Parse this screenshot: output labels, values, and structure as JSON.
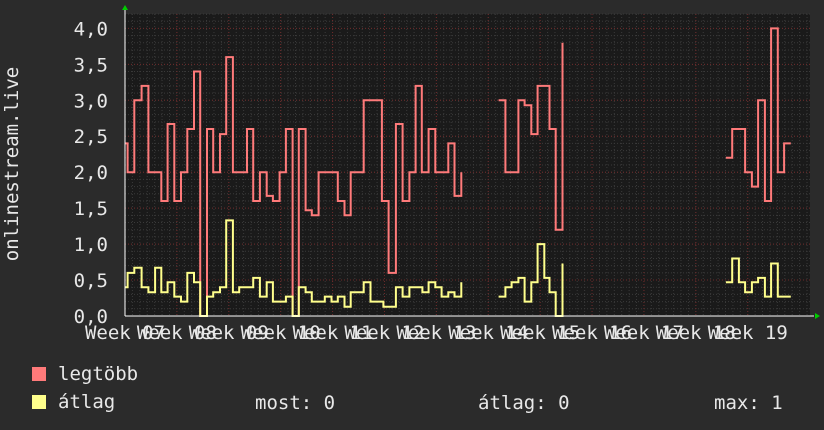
{
  "chart_data": {
    "type": "line",
    "ylabel": "onlinestream.live",
    "ylim": [
      0,
      4.2
    ],
    "yticks": [
      "0,0",
      "0,5",
      "1,0",
      "1,5",
      "2,0",
      "2,5",
      "3,0",
      "3,5",
      "4,0"
    ],
    "xticks": [
      "Week 07",
      "Week 08",
      "Week 09",
      "Week 10",
      "Week 11",
      "Week 12",
      "Week 13",
      "Week 14",
      "Week 15",
      "Week 16",
      "Week 17",
      "Week 18",
      "Week 19"
    ],
    "xlim": [
      0,
      13.2
    ],
    "grid": true,
    "series": [
      {
        "name": "legtöbb",
        "color": "#ff7a7a",
        "points": [
          [
            0.0,
            2.4
          ],
          [
            0.05,
            2.0
          ],
          [
            0.18,
            3.0
          ],
          [
            0.32,
            3.2
          ],
          [
            0.45,
            2.0
          ],
          [
            0.7,
            1.6
          ],
          [
            0.82,
            2.67
          ],
          [
            0.95,
            1.6
          ],
          [
            1.08,
            2.0
          ],
          [
            1.2,
            2.6
          ],
          [
            1.33,
            3.4
          ],
          [
            1.45,
            0.0
          ],
          [
            1.58,
            2.6
          ],
          [
            1.7,
            2.0
          ],
          [
            1.83,
            2.53
          ],
          [
            1.95,
            3.6
          ],
          [
            2.08,
            2.0
          ],
          [
            2.35,
            2.6
          ],
          [
            2.47,
            1.6
          ],
          [
            2.6,
            2.0
          ],
          [
            2.73,
            1.67
          ],
          [
            2.85,
            1.6
          ],
          [
            2.98,
            2.0
          ],
          [
            3.1,
            2.6
          ],
          [
            3.23,
            0.0
          ],
          [
            3.35,
            2.6
          ],
          [
            3.48,
            1.47
          ],
          [
            3.6,
            1.4
          ],
          [
            3.73,
            2.0
          ],
          [
            4.1,
            1.6
          ],
          [
            4.23,
            1.4
          ],
          [
            4.35,
            2.0
          ],
          [
            4.6,
            3.0
          ],
          [
            4.95,
            1.6
          ],
          [
            5.08,
            0.6
          ],
          [
            5.22,
            2.67
          ],
          [
            5.35,
            1.6
          ],
          [
            5.48,
            2.0
          ],
          [
            5.6,
            3.2
          ],
          [
            5.72,
            2.0
          ],
          [
            5.85,
            2.6
          ],
          [
            5.98,
            2.0
          ],
          [
            6.23,
            2.4
          ],
          [
            6.35,
            1.67
          ],
          [
            6.48,
            2.0
          ],
          [
            6.6,
            null
          ],
          [
            7.2,
            3.0
          ],
          [
            7.33,
            2.0
          ],
          [
            7.58,
            3.0
          ],
          [
            7.7,
            2.93
          ],
          [
            7.83,
            2.53
          ],
          [
            7.95,
            3.2
          ],
          [
            8.18,
            2.6
          ],
          [
            8.3,
            1.2
          ],
          [
            8.43,
            3.8
          ],
          [
            8.5,
            null
          ],
          [
            11.58,
            2.2
          ],
          [
            11.7,
            2.6
          ],
          [
            11.95,
            2.0
          ],
          [
            12.08,
            1.8
          ],
          [
            12.2,
            3.0
          ],
          [
            12.33,
            1.6
          ],
          [
            12.45,
            4.0
          ],
          [
            12.58,
            2.0
          ],
          [
            12.7,
            2.4
          ],
          [
            12.83,
            2.4
          ]
        ]
      },
      {
        "name": "átlag",
        "color": "#ffff8c",
        "points": [
          [
            0.0,
            0.4
          ],
          [
            0.05,
            0.6
          ],
          [
            0.18,
            0.67
          ],
          [
            0.32,
            0.4
          ],
          [
            0.45,
            0.33
          ],
          [
            0.58,
            0.67
          ],
          [
            0.7,
            0.33
          ],
          [
            0.82,
            0.47
          ],
          [
            0.95,
            0.27
          ],
          [
            1.08,
            0.2
          ],
          [
            1.2,
            0.6
          ],
          [
            1.33,
            0.47
          ],
          [
            1.45,
            0.0
          ],
          [
            1.58,
            0.27
          ],
          [
            1.7,
            0.33
          ],
          [
            1.83,
            0.4
          ],
          [
            1.95,
            1.33
          ],
          [
            2.08,
            0.33
          ],
          [
            2.2,
            0.4
          ],
          [
            2.47,
            0.53
          ],
          [
            2.6,
            0.27
          ],
          [
            2.73,
            0.47
          ],
          [
            2.85,
            0.2
          ],
          [
            2.98,
            0.2
          ],
          [
            3.1,
            0.27
          ],
          [
            3.23,
            0.0
          ],
          [
            3.35,
            0.4
          ],
          [
            3.48,
            0.33
          ],
          [
            3.6,
            0.2
          ],
          [
            3.73,
            0.2
          ],
          [
            3.85,
            0.27
          ],
          [
            3.98,
            0.2
          ],
          [
            4.1,
            0.27
          ],
          [
            4.23,
            0.13
          ],
          [
            4.35,
            0.33
          ],
          [
            4.48,
            0.33
          ],
          [
            4.6,
            0.47
          ],
          [
            4.73,
            0.2
          ],
          [
            4.85,
            0.2
          ],
          [
            4.98,
            0.13
          ],
          [
            5.1,
            0.13
          ],
          [
            5.22,
            0.4
          ],
          [
            5.35,
            0.27
          ],
          [
            5.48,
            0.4
          ],
          [
            5.73,
            0.33
          ],
          [
            5.85,
            0.47
          ],
          [
            5.98,
            0.4
          ],
          [
            6.1,
            0.27
          ],
          [
            6.23,
            0.33
          ],
          [
            6.35,
            0.27
          ],
          [
            6.48,
            0.47
          ],
          [
            6.6,
            null
          ],
          [
            7.2,
            0.27
          ],
          [
            7.33,
            0.4
          ],
          [
            7.45,
            0.47
          ],
          [
            7.58,
            0.53
          ],
          [
            7.7,
            0.2
          ],
          [
            7.83,
            0.47
          ],
          [
            7.95,
            1.0
          ],
          [
            8.08,
            0.53
          ],
          [
            8.18,
            0.33
          ],
          [
            8.3,
            0.0
          ],
          [
            8.43,
            0.73
          ],
          [
            8.5,
            null
          ],
          [
            11.58,
            0.47
          ],
          [
            11.7,
            0.8
          ],
          [
            11.83,
            0.47
          ],
          [
            11.95,
            0.33
          ],
          [
            12.08,
            0.47
          ],
          [
            12.2,
            0.53
          ],
          [
            12.33,
            0.27
          ],
          [
            12.45,
            0.73
          ],
          [
            12.58,
            0.27
          ],
          [
            12.7,
            0.27
          ],
          [
            12.83,
            0.27
          ]
        ]
      }
    ],
    "legend": {
      "placement": "bottom-left",
      "items": [
        {
          "label": "legtöbb",
          "color": "#ff7a7a"
        },
        {
          "label": "átlag",
          "color": "#ffff8c"
        }
      ]
    },
    "stats": {
      "most_label": "most:",
      "most_value": "0",
      "atlag_label": "átlag:",
      "atlag_value": "0",
      "max_label": "max:",
      "max_value": "1"
    }
  },
  "colors": {
    "background": "#2b2b2b",
    "plot_background": "#1a1a1a",
    "grid_minor": "#3a3a3a",
    "grid_major": "#6e2a2a",
    "axis": "#ffffff",
    "arrow": "#00cc00",
    "text": "#e8e8e8"
  }
}
